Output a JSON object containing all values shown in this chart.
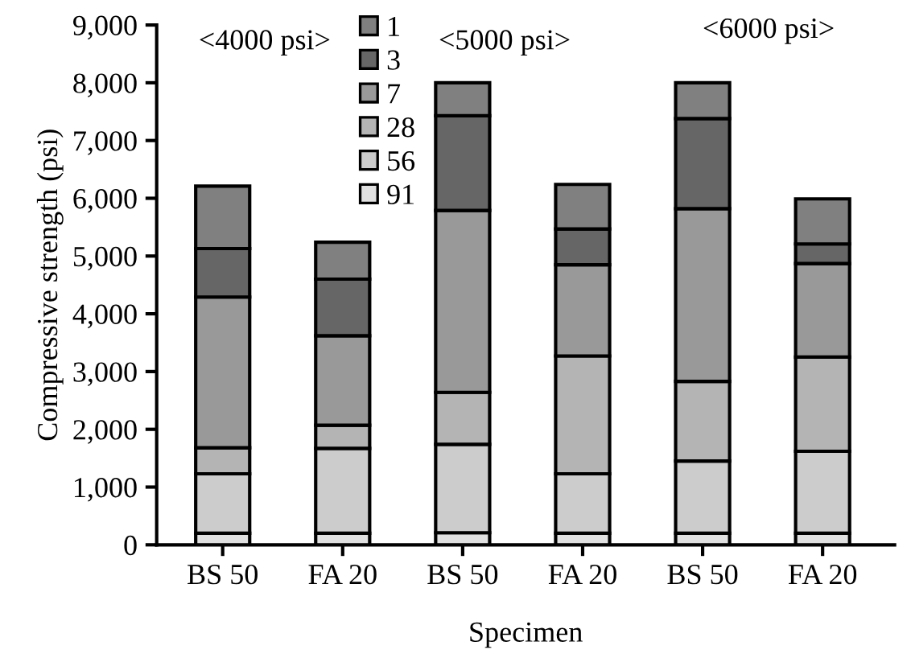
{
  "chart_data": {
    "type": "bar",
    "stacked": true,
    "xlabel": "Specimen",
    "ylabel": "Compressive strength (psi)",
    "categories": [
      "BS 50",
      "FA 20",
      "BS 50",
      "FA 20",
      "BS 50",
      "FA 20"
    ],
    "series": [
      {
        "name": "91",
        "color": "#e0e0e0",
        "values": [
          200,
          200,
          210,
          200,
          200,
          200
        ]
      },
      {
        "name": "56",
        "color": "#cccccc",
        "values": [
          1030,
          1470,
          1530,
          1030,
          1250,
          1420
        ]
      },
      {
        "name": "28",
        "color": "#b4b4b4",
        "values": [
          450,
          400,
          900,
          2040,
          1380,
          1630
        ]
      },
      {
        "name": "7",
        "color": "#999999",
        "values": [
          2610,
          1550,
          3150,
          1580,
          2990,
          1620
        ]
      },
      {
        "name": "3",
        "color": "#666666",
        "values": [
          840,
          980,
          1640,
          620,
          1560,
          340
        ]
      },
      {
        "name": "1",
        "color": "#808080",
        "values": [
          1080,
          640,
          570,
          770,
          620,
          780
        ]
      }
    ],
    "ylim": [
      0,
      9000
    ],
    "yticks": [
      0,
      {
        "value": 1000,
        "label": "1,000"
      },
      {
        "value": 2000,
        "label": "2,000"
      },
      {
        "value": 3000,
        "label": "3,000"
      },
      {
        "value": 4000,
        "label": "4,000"
      },
      {
        "value": 5000,
        "label": "5,000"
      },
      {
        "value": 6000,
        "label": "6,000"
      },
      {
        "value": 7000,
        "label": "7,000"
      },
      {
        "value": 8000,
        "label": "8,000"
      },
      {
        "value": 9000,
        "label": "9,000"
      }
    ],
    "annotations": [
      "<4000 psi>",
      "<5000 psi>",
      "<6000 psi>"
    ],
    "legend": "top",
    "grid": false
  }
}
